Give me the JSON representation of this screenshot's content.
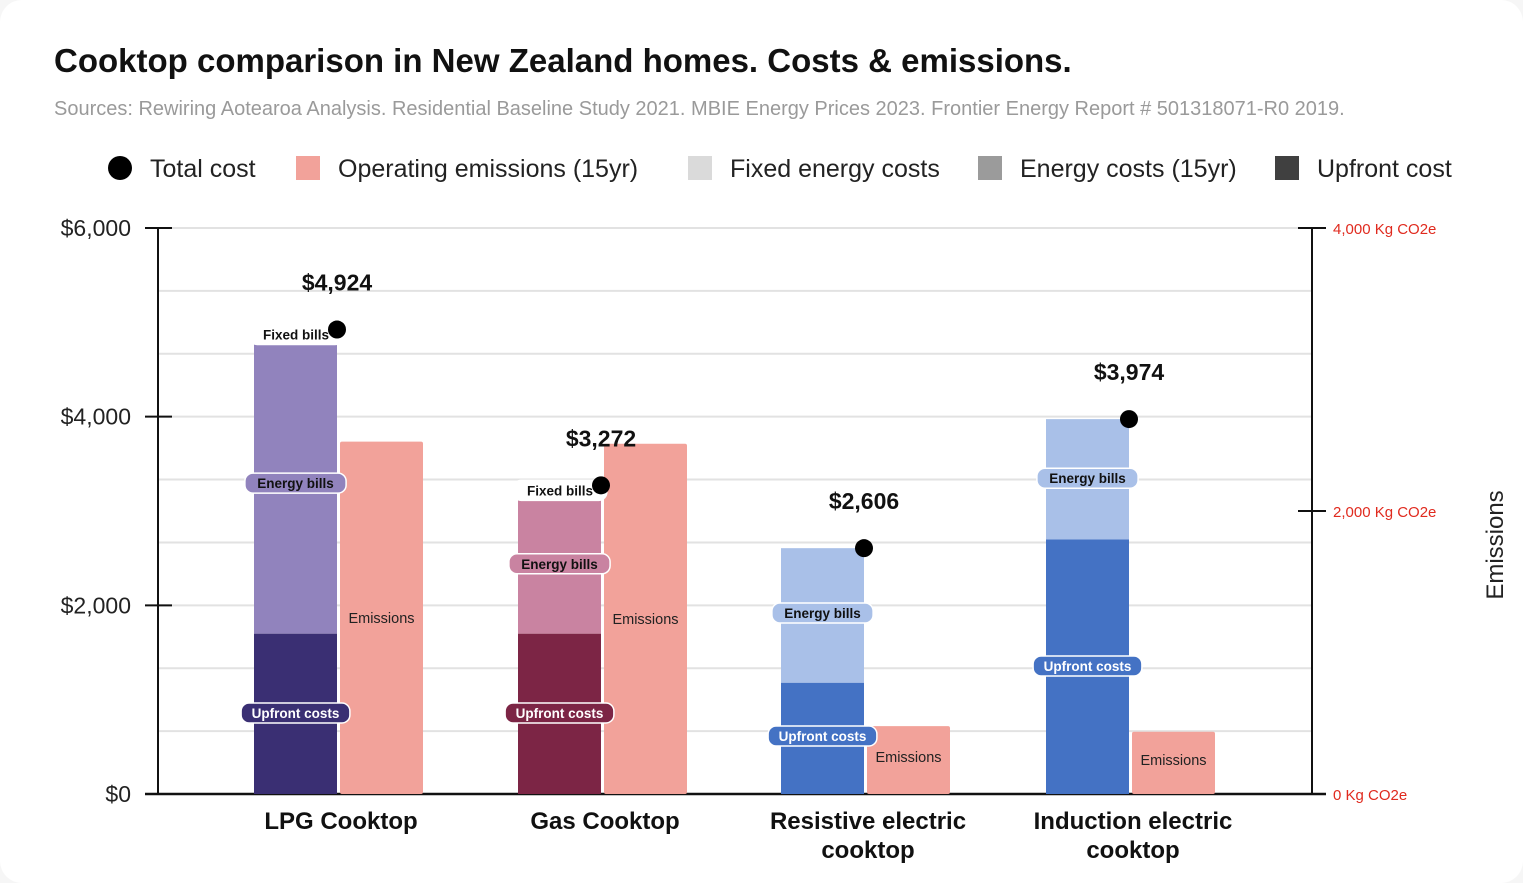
{
  "header": {
    "title": "Cooktop comparison in New Zealand homes. Costs & emissions.",
    "subtitle": "Sources: Rewiring Aotearoa Analysis. Residential Baseline Study 2021. MBIE Energy Prices 2023. Frontier Energy Report # 501318071-R0 2019."
  },
  "colors": {
    "emissions": "#f2a29a",
    "total_dot": "#000000",
    "fixed_legend": "#dadada",
    "energy_legend": "#9b9b9b",
    "upfront_legend": "#404040",
    "right_axis": "#e02a1e",
    "gridline": "#e2e2e2"
  },
  "chart_data": {
    "type": "bar",
    "title": "Cooktop comparison in New Zealand homes. Costs & emissions.",
    "categories": [
      "LPG Cooktop",
      "Gas Cooktop",
      "Resistive electric cooktop",
      "Induction electric cooktop"
    ],
    "legend": [
      {
        "label": "Total cost",
        "marker": "dot",
        "color": "#000000"
      },
      {
        "label": "Operating emissions (15yr)",
        "marker": "square",
        "color": "#f2a29a"
      },
      {
        "label": "Fixed energy costs",
        "marker": "square",
        "color": "#dadada"
      },
      {
        "label": "Energy costs (15yr)",
        "marker": "square",
        "color": "#9b9b9b"
      },
      {
        "label": "Upfront cost",
        "marker": "square",
        "color": "#404040"
      }
    ],
    "legend_position": "top",
    "y_left": {
      "ylim": [
        0,
        6000
      ],
      "ticks": [
        0,
        2000,
        4000,
        6000
      ],
      "tick_labels": [
        "$0",
        "$2,000",
        "$4,000",
        "$6,000"
      ]
    },
    "y_right": {
      "label": "Emissions",
      "ylim": [
        0,
        4000
      ],
      "ticks": [
        0,
        2000,
        4000
      ],
      "tick_labels": [
        "0 Kg CO2e",
        "2,000 Kg CO2e",
        "4,000 Kg CO2e"
      ]
    },
    "grid": true,
    "stacked_cost_series": [
      {
        "name": "Upfront costs",
        "values": [
          1700,
          1700,
          1180,
          2700
        ],
        "colors": [
          "#3a2f73",
          "#7c2545",
          "#4472c4",
          "#4472c4"
        ]
      },
      {
        "name": "Energy bills",
        "values": [
          3170,
          1460,
          1426,
          1274
        ],
        "colors": [
          "#9183bd",
          "#c983a1",
          "#a9c0e8",
          "#a9c0e8"
        ]
      },
      {
        "name": "Fixed bills",
        "values": [
          54,
          112,
          0,
          0
        ],
        "colors": [
          "#dddbe8",
          "#e6d3dc",
          "#dde4f2",
          "#dde4f2"
        ]
      }
    ],
    "total_cost": {
      "name": "Total cost",
      "values": [
        4924,
        3272,
        2606,
        3974
      ],
      "labels": [
        "$4,924",
        "$3,272",
        "$2,606",
        "$3,974"
      ]
    },
    "emissions": {
      "name": "Emissions",
      "values": [
        2490,
        2475,
        480,
        440
      ]
    }
  }
}
